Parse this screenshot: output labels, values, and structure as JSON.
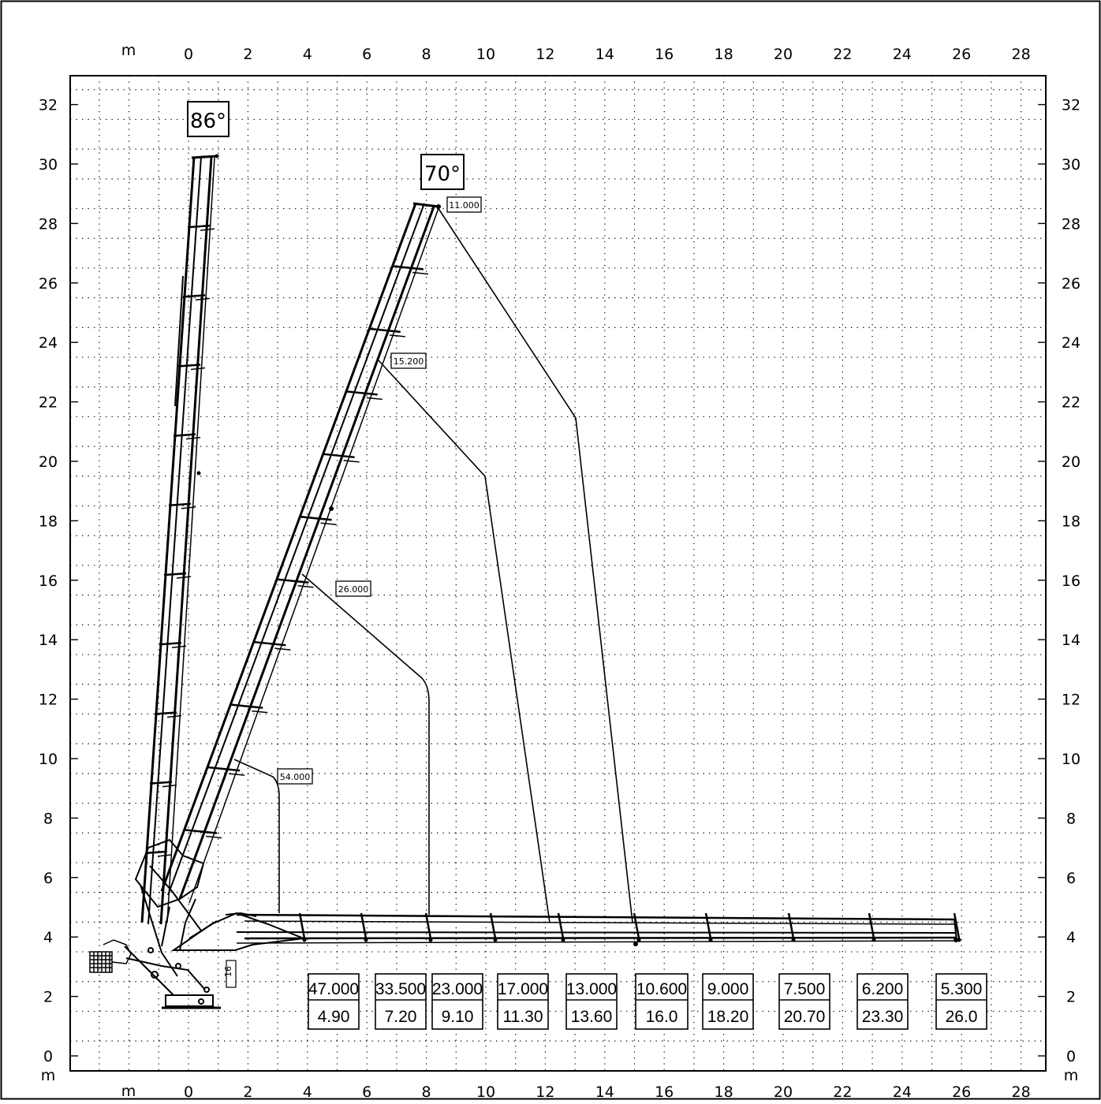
{
  "axes": {
    "x_unit": "m",
    "y_unit": "m",
    "x_ticks": [
      "0",
      "2",
      "4",
      "6",
      "8",
      "10",
      "12",
      "14",
      "16",
      "18",
      "20",
      "22",
      "24",
      "26",
      "28"
    ],
    "y_ticks": [
      "0",
      "2",
      "4",
      "6",
      "8",
      "10",
      "12",
      "14",
      "16",
      "18",
      "20",
      "22",
      "24",
      "26",
      "28",
      "30",
      "32"
    ]
  },
  "angles": [
    {
      "label": "86°"
    },
    {
      "label": "70°"
    }
  ],
  "curve_labels": [
    {
      "label": "11.000"
    },
    {
      "label": "15.200"
    },
    {
      "label": "26.000"
    },
    {
      "label": "54.000"
    }
  ],
  "load_table": [
    {
      "load": "47.000",
      "radius": "4.90"
    },
    {
      "load": "33.500",
      "radius": "7.20"
    },
    {
      "load": "23.000",
      "radius": "9.10"
    },
    {
      "load": "17.000",
      "radius": "11.30"
    },
    {
      "load": "13.000",
      "radius": "13.60"
    },
    {
      "load": "10.600",
      "radius": "16.0"
    },
    {
      "load": "9.000",
      "radius": "18.20"
    },
    {
      "load": "7.500",
      "radius": "20.70"
    },
    {
      "load": "6.200",
      "radius": "23.30"
    },
    {
      "load": "5.300",
      "radius": "26.0"
    }
  ],
  "crane_tag": "16",
  "colors": {
    "ink": "#000000",
    "grid": "#000000",
    "background": "#ffffff"
  }
}
